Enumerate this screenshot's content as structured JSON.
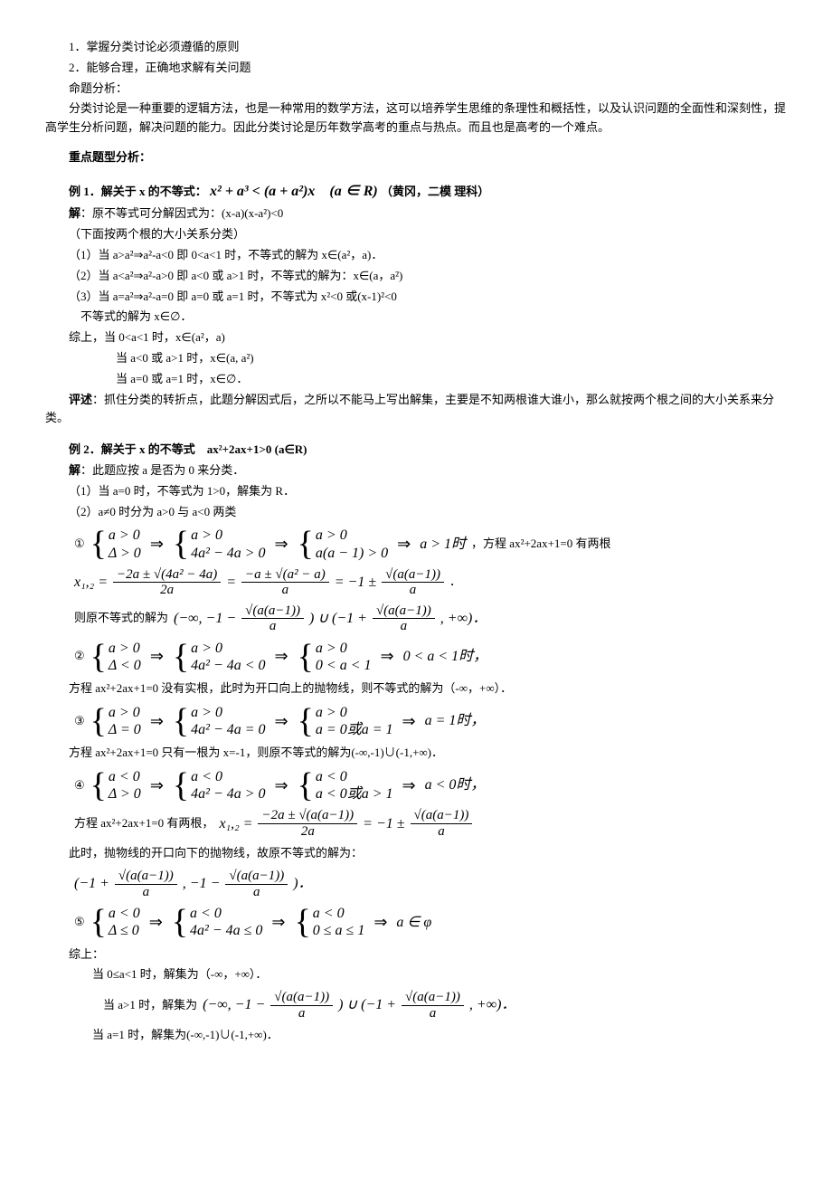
{
  "header": {
    "line1": "1．掌握分类讨论必须遵循的原则",
    "line2": "2．能够合理，正确地求解有关问题",
    "line3": "命题分析：",
    "para": "分类讨论是一种重要的逻辑方法，也是一种常用的数学方法，这可以培养学生思维的条理性和概括性，以及认识问题的全面性和深刻性，提高学生分析问题，解决问题的能力。因此分类讨论是历年数学高考的重点与热点。而且也是高考的一个难点。"
  },
  "section1": "重点题型分析：",
  "ex1": {
    "title_prefix": "例 1．解关于 x 的不等式：",
    "title_math": "x² + a³ < (a + a²)x　(a ∈ R)",
    "title_suffix": "（黄冈，二模 理科）",
    "sol_label": "解",
    "sol_0": "：原不等式可分解因式为：(x-a)(x-a²)<0",
    "sol_1": "（下面按两个根的大小关系分类）",
    "sol_2": "（1）当 a>a²⇒a²-a<0 即 0<a<1 时，不等式的解为 x∈(a²，a)．",
    "sol_3": "（2）当 a<a²⇒a²-a>0 即 a<0 或 a>1 时，不等式的解为：x∈(a，a²)",
    "sol_4": "（3）当 a=a²⇒a²-a=0 即 a=0 或 a=1 时，不等式为 x²<0 或(x-1)²<0",
    "sol_5": "不等式的解为 x∈∅．",
    "sol_6": "综上，当 0<a<1 时，x∈(a²，a)",
    "sol_7": "当 a<0 或 a>1 时，x∈(a, a²)",
    "sol_8": "当 a=0 或 a=1 时，x∈∅．",
    "comment_label": "评述",
    "comment": "：抓住分类的转折点，此题分解因式后，之所以不能马上写出解集，主要是不知两根谁大谁小，那么就按两个根之间的大小关系来分类。"
  },
  "ex2": {
    "title": "例 2．解关于 x 的不等式　ax²+2ax+1>0 (a∈R)",
    "sol_label": "解",
    "sol_0": "：此题应按 a 是否为 0 来分类．",
    "sol_1": "（1）当 a=0 时，不等式为 1>0，解集为 R．",
    "sol_2": "（2）a≠0 时分为 a>0 与 a<0 两类",
    "case1_num": "①",
    "case1_sys1_r1": "a > 0",
    "case1_sys1_r2": "Δ > 0",
    "case1_sys2_r1": "a > 0",
    "case1_sys2_r2": "4a² − 4a > 0",
    "case1_sys3_r1": "a > 0",
    "case1_sys3_r2": "a(a − 1) > 0",
    "case1_result": "a > 1时",
    "case1_tail": "，方程 ax²+2ax+1=0 有两根",
    "roots_lhs": "x₁,₂ =",
    "roots_f1_top": "−2a ± √(4a² − 4a)",
    "roots_f1_bot": "2a",
    "roots_f2_top": "−a ± √(a² − a)",
    "roots_f2_bot": "a",
    "roots_pm": "= −1 ±",
    "roots_f3_top": "√(a(a−1))",
    "roots_f3_bot": "a",
    "roots_dot": "．",
    "sol_set_prefix": "则原不等式的解为",
    "sol_set_open": "(−∞, −1 −",
    "sol_set_frac_top": "√(a(a−1))",
    "sol_set_frac_bot": "a",
    "sol_set_mid": ") ∪ (−1 +",
    "sol_set_close": ", +∞)．",
    "case2_num": "②",
    "case2_sys1_r1": "a > 0",
    "case2_sys1_r2": "Δ < 0",
    "case2_sys2_r1": "a > 0",
    "case2_sys2_r2": "4a² − 4a < 0",
    "case2_sys3_r1": "a > 0",
    "case2_sys3_r2": "0 < a < 1",
    "case2_result": "0 < a < 1时，",
    "case2_text": "方程 ax²+2ax+1=0 没有实根，此时为开口向上的抛物线，则不等式的解为（-∞，+∞）．",
    "case3_num": "③",
    "case3_sys1_r1": "a > 0",
    "case3_sys1_r2": "Δ = 0",
    "case3_sys2_r1": "a > 0",
    "case3_sys2_r2": "4a² − 4a = 0",
    "case3_sys3_r1": "a > 0",
    "case3_sys3_r2": "a = 0或a = 1",
    "case3_result": "a = 1时，",
    "case3_text": "方程 ax²+2ax+1=0 只有一根为 x=-1，则原不等式的解为(-∞,-1)∪(-1,+∞)．",
    "case4_num": "④",
    "case4_sys1_r1": "a < 0",
    "case4_sys1_r2": "Δ > 0",
    "case4_sys2_r1": "a < 0",
    "case4_sys2_r2": "4a² − 4a > 0",
    "case4_sys3_r1": "a < 0",
    "case4_sys3_r2": "a < 0或a > 1",
    "case4_result": "a < 0时，",
    "case4_text_pre": "方程 ax²+2ax+1=0 有两根，",
    "case4_roots_lhs": "x₁,₂ =",
    "case4_f1_top": "−2a ± √(a(a−1))",
    "case4_f1_bot": "2a",
    "case4_pm": "= −1 ±",
    "case4_f2_top": "√(a(a−1))",
    "case4_f2_bot": "a",
    "case4_text2": "此时，抛物线的开口向下的抛物线，故原不等式的解为：",
    "case4_sol_open": "(−1 +",
    "case4_sol_f_top": "√(a(a−1))",
    "case4_sol_f_bot": "a",
    "case4_sol_mid": ", −1 −",
    "case4_sol_close": ")．",
    "case5_num": "⑤",
    "case5_sys1_r1": "a < 0",
    "case5_sys1_r2": "Δ ≤ 0",
    "case5_sys2_r1": "a < 0",
    "case5_sys2_r2": "4a² − 4a ≤ 0",
    "case5_sys3_r1": "a < 0",
    "case5_sys3_r2": "0 ≤ a ≤ 1",
    "case5_result": "a ∈ φ",
    "summary_label": "综上：",
    "summary1": "当 0≤a<1 时，解集为（-∞，+∞）．",
    "summary2_pre": "当 a>1 时，解集为",
    "summary2_open": "(−∞, −1 −",
    "summary2_f_top": "√(a(a−1))",
    "summary2_f_bot": "a",
    "summary2_mid": ") ∪ (−1 +",
    "summary2_close": ", +∞)．",
    "summary3": "当 a=1 时，解集为(-∞,-1)∪(-1,+∞)．"
  }
}
